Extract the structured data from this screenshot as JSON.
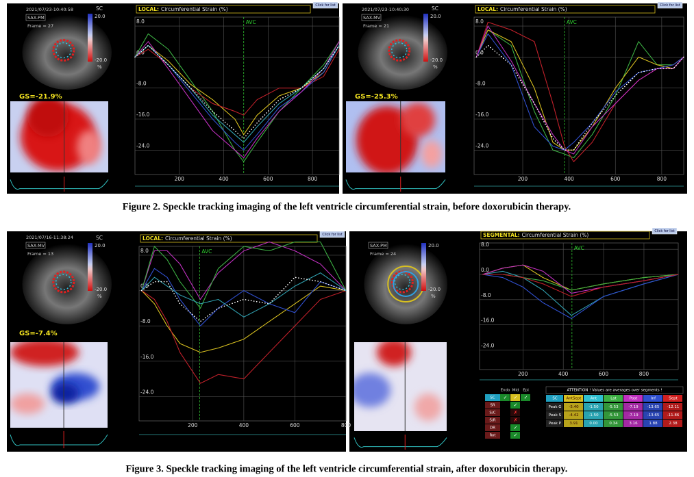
{
  "captions": [
    "Figure 2. Speckle tracking imaging of the left ventricle circumferential strain, before doxorubicin therapy.",
    "Figure 3. Speckle tracking imaging of the left ventricle circumferential strain, after doxorubicin therapy."
  ],
  "panels": [
    {
      "date": "2021/07/23-10:40:58",
      "view": "SAX-PM",
      "frame": "Frame = 27",
      "sc": "SC",
      "scale_max": "20.0",
      "scale_min": "-20.0",
      "unit": "%",
      "gs": "GS=-21.9%"
    },
    {
      "date": "2021/07/23-10:40:30",
      "view": "SAX-MV",
      "frame": "Frame = 21",
      "sc": "SC",
      "scale_max": "20.0",
      "scale_min": "-20.0",
      "unit": "%",
      "gs": "GS=-25.3%"
    },
    {
      "date": "2021/07/16-11:38:24",
      "view": "SAX-MV",
      "frame": "Frame = 13",
      "sc": "SC",
      "scale_max": "20.0",
      "scale_min": "-20.0",
      "unit": "%",
      "gs": "GS=-7.4%"
    },
    {
      "view": "SAX-PM",
      "frame": "Frame = 24",
      "scale_max": "20.0",
      "scale_min": "-20.0",
      "unit": "%"
    }
  ],
  "chart_data": [
    {
      "type": "line",
      "mode": "LOCAL:",
      "title": "Circumferential Strain (%)",
      "button": "Click for list",
      "avc": {
        "label": "AVC",
        "x": 490
      },
      "xlim": [
        0,
        920
      ],
      "ylim": [
        -30.3,
        10.3
      ],
      "grid": true,
      "xticks": [
        200,
        400,
        600,
        800
      ],
      "yticks": [
        {
          "value": 8,
          "label": "8.0"
        },
        {
          "value": 0,
          "label": "0.0"
        },
        {
          "value": -8,
          "label": "-8.0"
        },
        {
          "value": -16,
          "label": "-16.0"
        },
        {
          "value": -24,
          "label": "-24.0"
        }
      ],
      "x": [
        0,
        60,
        150,
        250,
        350,
        450,
        490,
        550,
        650,
        750,
        850,
        920
      ],
      "series": [
        {
          "color": "#3cb043",
          "values": [
            0,
            6,
            2,
            -6,
            -14,
            -24,
            -27,
            -22,
            -14,
            -8,
            -2,
            4
          ]
        },
        {
          "color": "#d8c020",
          "values": [
            0,
            3,
            -1,
            -7,
            -11,
            -16,
            -20,
            -15,
            -10,
            -8,
            -4,
            3
          ]
        },
        {
          "color": "#c0202a",
          "values": [
            0,
            2,
            -2,
            -8,
            -12,
            -14,
            -15,
            -11,
            -8,
            -8,
            -5,
            2
          ]
        },
        {
          "color": "#3050d0",
          "values": [
            0,
            3,
            -2,
            -9,
            -16,
            -22,
            -24,
            -20,
            -13,
            -9,
            -4,
            3
          ]
        },
        {
          "color": "#c030c0",
          "values": [
            0,
            4,
            -3,
            -11,
            -19,
            -24,
            -26,
            -21,
            -14,
            -9,
            -3,
            4
          ]
        },
        {
          "color": "#30a0b0",
          "values": [
            0,
            3,
            -2,
            -8,
            -15,
            -20,
            -22,
            -18,
            -12,
            -8,
            -3,
            3
          ]
        },
        {
          "color": "#ffffff",
          "style": "dotted",
          "values": [
            0,
            3,
            -2,
            -8,
            -14,
            -19,
            -21,
            -17,
            -11,
            -8,
            -3,
            3
          ]
        }
      ]
    },
    {
      "type": "line",
      "mode": "LOCAL:",
      "title": "Circumferential Strain (%)",
      "button": "Click for list",
      "avc": {
        "label": "AVC",
        "x": 380
      },
      "xlim": [
        -10,
        895
      ],
      "ylim": [
        -30.3,
        10.3
      ],
      "grid": true,
      "xticks": [
        200,
        400,
        600,
        800
      ],
      "yticks": [
        {
          "value": 8,
          "label": "8.0"
        },
        {
          "value": 0,
          "label": "0.0"
        },
        {
          "value": -8,
          "label": "-8.0"
        },
        {
          "value": -16,
          "label": "-16.0"
        },
        {
          "value": -24,
          "label": "-24.0"
        }
      ],
      "x": [
        0,
        50,
        150,
        250,
        330,
        380,
        420,
        500,
        600,
        700,
        780,
        850,
        895
      ],
      "series": [
        {
          "color": "#3cb043",
          "values": [
            0,
            7,
            3,
            -14,
            -24,
            -25,
            -26,
            -20,
            -10,
            4,
            -2,
            -2,
            0
          ]
        },
        {
          "color": "#d8c020",
          "values": [
            0,
            7,
            4,
            -8,
            -22,
            -24,
            -24,
            -18,
            -8,
            0,
            -2,
            -3,
            0
          ]
        },
        {
          "color": "#c0202a",
          "values": [
            0,
            9,
            7,
            4,
            -12,
            -23,
            -27,
            -22,
            -12,
            -6,
            -3,
            -2,
            0
          ]
        },
        {
          "color": "#3050d0",
          "values": [
            0,
            6,
            -2,
            -18,
            -23,
            -24,
            -22,
            -17,
            -9,
            -4,
            -3,
            -2,
            0
          ]
        },
        {
          "color": "#c030c0",
          "values": [
            0,
            8,
            -1,
            -12,
            -20,
            -24,
            -25,
            -18,
            -12,
            -6,
            -3,
            -3,
            0
          ]
        },
        {
          "color": "#ffffff",
          "style": "dotted",
          "values": [
            0,
            3,
            -2,
            -12,
            -21,
            -24,
            -24,
            -17,
            -10,
            -4,
            -3,
            -3,
            0
          ]
        }
      ]
    },
    {
      "type": "line",
      "mode": "LOCAL:",
      "title": "Circumferential Strain (%)",
      "button": "Click for list",
      "avc": {
        "label": "AVC",
        "x": 227
      },
      "xlim": [
        -10,
        800
      ],
      "ylim": [
        -29.5,
        10
      ],
      "grid": true,
      "xticks": [
        200,
        400,
        600,
        800
      ],
      "yticks": [
        {
          "value": 8,
          "label": "8.0"
        },
        {
          "value": 0,
          "label": "0.0"
        },
        {
          "value": -8,
          "label": "-8.0"
        },
        {
          "value": -16,
          "label": "-16.0"
        },
        {
          "value": -24,
          "label": "-24.0"
        }
      ],
      "x": [
        0,
        50,
        100,
        150,
        230,
        300,
        400,
        500,
        600,
        700,
        800
      ],
      "series": [
        {
          "color": "#c030c0",
          "values": [
            0,
            9,
            9,
            6,
            -2,
            4,
            9,
            11,
            9,
            6,
            0
          ]
        },
        {
          "color": "#3cb043",
          "values": [
            0,
            10,
            7,
            2,
            -4,
            5,
            10,
            9,
            11,
            11,
            0
          ]
        },
        {
          "color": "#d8c020",
          "values": [
            0,
            -3,
            -8,
            -12,
            -14,
            -13,
            -11,
            -7,
            -3,
            1,
            0
          ]
        },
        {
          "color": "#c0202a",
          "values": [
            0,
            -2,
            -7,
            -14,
            -21,
            -19,
            -20,
            -14,
            -8,
            -2,
            0
          ]
        },
        {
          "color": "#3050d0",
          "values": [
            0,
            5,
            3,
            -2,
            -8,
            -4,
            0,
            -3,
            -5,
            2,
            0
          ]
        },
        {
          "color": "#30a0b0",
          "values": [
            0,
            3,
            1,
            -1,
            -3,
            -2,
            -6,
            -3,
            1,
            4,
            0
          ]
        },
        {
          "color": "#ffffff",
          "style": "dotted",
          "values": [
            0,
            2,
            2,
            -3,
            -7,
            -4,
            -2,
            -3,
            3,
            2,
            0
          ]
        }
      ]
    },
    {
      "type": "line",
      "mode": "SEGMENTAL:",
      "title": "Circumferential Strain (%)",
      "button": "Click for list",
      "avc": {
        "label": "AVC",
        "x": 443
      },
      "xlim": [
        -15,
        970
      ],
      "ylim": [
        -30.2,
        10
      ],
      "grid": true,
      "xticks": [
        200,
        400,
        600,
        800
      ],
      "yticks": [
        {
          "value": 8,
          "label": "8.0"
        },
        {
          "value": 0,
          "label": "0.0"
        },
        {
          "value": -8,
          "label": "-8.0"
        },
        {
          "value": -16,
          "label": "-16.0"
        },
        {
          "value": -24,
          "label": "-24.0"
        }
      ],
      "x": [
        0,
        100,
        200,
        300,
        440,
        600,
        800,
        970
      ],
      "series": [
        {
          "color": "#d8c020",
          "values": [
            0,
            2,
            3,
            -1,
            -5,
            -3,
            -1,
            0
          ]
        },
        {
          "color": "#30a0b0",
          "values": [
            0,
            1,
            -1,
            -5,
            -13,
            -7,
            -3,
            0
          ]
        },
        {
          "color": "#3cb043",
          "values": [
            0,
            0,
            -1,
            -2,
            -5,
            -3,
            -1,
            0
          ]
        },
        {
          "color": "#c030c0",
          "values": [
            0,
            2,
            3,
            1,
            -6,
            -4,
            -2,
            0
          ]
        },
        {
          "color": "#3050d0",
          "values": [
            0,
            -1,
            -4,
            -9,
            -14,
            -7,
            -3,
            0
          ]
        },
        {
          "color": "#c0202a",
          "values": [
            0,
            0,
            -1,
            -3,
            -7,
            -4,
            -2,
            0
          ]
        }
      ]
    }
  ],
  "table": {
    "columns": [
      "Endo",
      "Mid",
      "Epi"
    ],
    "rows": [
      {
        "label": "SC",
        "endo": "✓",
        "mid": "✓",
        "epi": "✓"
      },
      {
        "label": "SR",
        "mid": "✓"
      },
      {
        "label": "S/C",
        "mid": "✗"
      },
      {
        "label": "S/R",
        "mid": "✗"
      },
      {
        "label": "DR",
        "mid": "✓"
      },
      {
        "label": "Rot",
        "mid": "✓"
      }
    ]
  },
  "segment_table": {
    "note": "ATTENTION !  Values are averages over segments !",
    "columns": [
      "SC",
      "AntSept",
      "Ant",
      "Lat",
      "Post",
      "Inf",
      "Sept"
    ],
    "rows": [
      [
        "Peak G",
        "-5.40",
        "-1.50",
        "-5.53",
        "-7.19",
        "-13.65",
        "-12.11"
      ],
      [
        "Peak S",
        "-4.42",
        "-1.50",
        "-5.53",
        "-7.19",
        "-13.65",
        "-11.86"
      ],
      [
        "Peak P",
        "3.91",
        "0.00",
        "0.34",
        "3.16",
        "1.88",
        "2.38"
      ]
    ]
  }
}
